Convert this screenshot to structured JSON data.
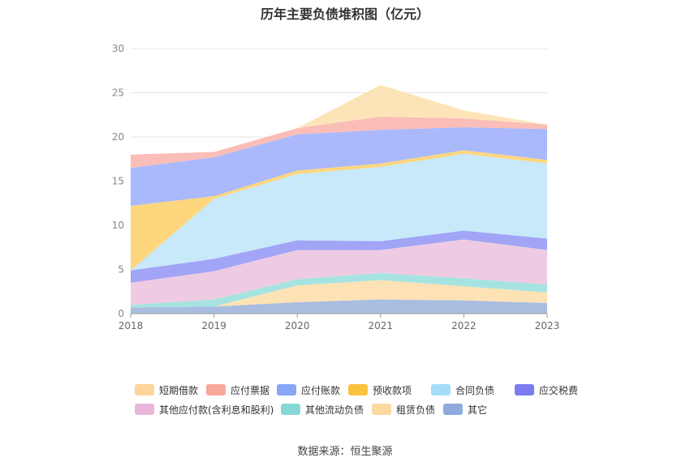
{
  "chart_data": {
    "type": "area",
    "title": "历年主要负债堆积图（亿元）",
    "x": [
      "2018",
      "2019",
      "2020",
      "2021",
      "2022",
      "2023"
    ],
    "ylim": [
      0,
      30
    ],
    "yticks": [
      0,
      5,
      10,
      15,
      20,
      25,
      30
    ],
    "grid": true,
    "legend_position": "bottom",
    "series": [
      {
        "name": "其它",
        "color": "#a9bde1",
        "values": [
          0.7,
          0.8,
          1.3,
          1.6,
          1.5,
          1.2
        ]
      },
      {
        "name": "租赁负债",
        "color": "#fde2b5",
        "values": [
          0.0,
          0.0,
          1.9,
          2.2,
          1.6,
          1.2
        ]
      },
      {
        "name": "其他流动负债",
        "color": "#a6e3e0",
        "values": [
          0.3,
          0.8,
          0.7,
          0.8,
          0.9,
          0.9
        ]
      },
      {
        "name": "其他应付款(含利息和股利)",
        "color": "#eecbe3",
        "values": [
          2.5,
          3.2,
          3.3,
          2.6,
          4.4,
          3.9
        ]
      },
      {
        "name": "应交税费",
        "color": "#a2a4f5",
        "values": [
          1.4,
          1.4,
          1.1,
          1.0,
          1.0,
          1.3
        ]
      },
      {
        "name": "合同负债",
        "color": "#c7e9fa",
        "values": [
          0.0,
          6.8,
          7.5,
          8.4,
          8.7,
          8.5
        ]
      },
      {
        "name": "预收款项",
        "color": "#fdd67e",
        "values": [
          7.3,
          0.3,
          0.4,
          0.4,
          0.4,
          0.4
        ]
      },
      {
        "name": "应付账款",
        "color": "#aab9fb",
        "values": [
          4.3,
          4.4,
          4.1,
          3.8,
          2.6,
          3.5
        ]
      },
      {
        "name": "应付票据",
        "color": "#fbbdb7",
        "values": [
          1.5,
          0.6,
          0.7,
          1.5,
          1.0,
          0.5
        ]
      },
      {
        "name": "短期借款",
        "color": "#fde4b8",
        "values": [
          0.0,
          0.0,
          0.0,
          3.6,
          0.9,
          0.0
        ]
      }
    ]
  },
  "legend": [
    {
      "label": "短期借款",
      "color": "#fdd59a"
    },
    {
      "label": "应付票据",
      "color": "#f8a89b"
    },
    {
      "label": "应付账款",
      "color": "#8aa6f6"
    },
    {
      "label": "预收款项",
      "color": "#fbc33d"
    },
    {
      "label": "合同负债",
      "color": "#a5dcf9"
    },
    {
      "label": "应交税费",
      "color": "#7b7cf0"
    },
    {
      "label": "其他应付款(含利息和股利)",
      "color": "#e9b6db"
    },
    {
      "label": "其他流动负债",
      "color": "#86d8d6"
    },
    {
      "label": "租赁负债",
      "color": "#fcd9a0"
    },
    {
      "label": "其它",
      "color": "#8fabdc"
    }
  ],
  "source": "数据来源：恒生聚源"
}
